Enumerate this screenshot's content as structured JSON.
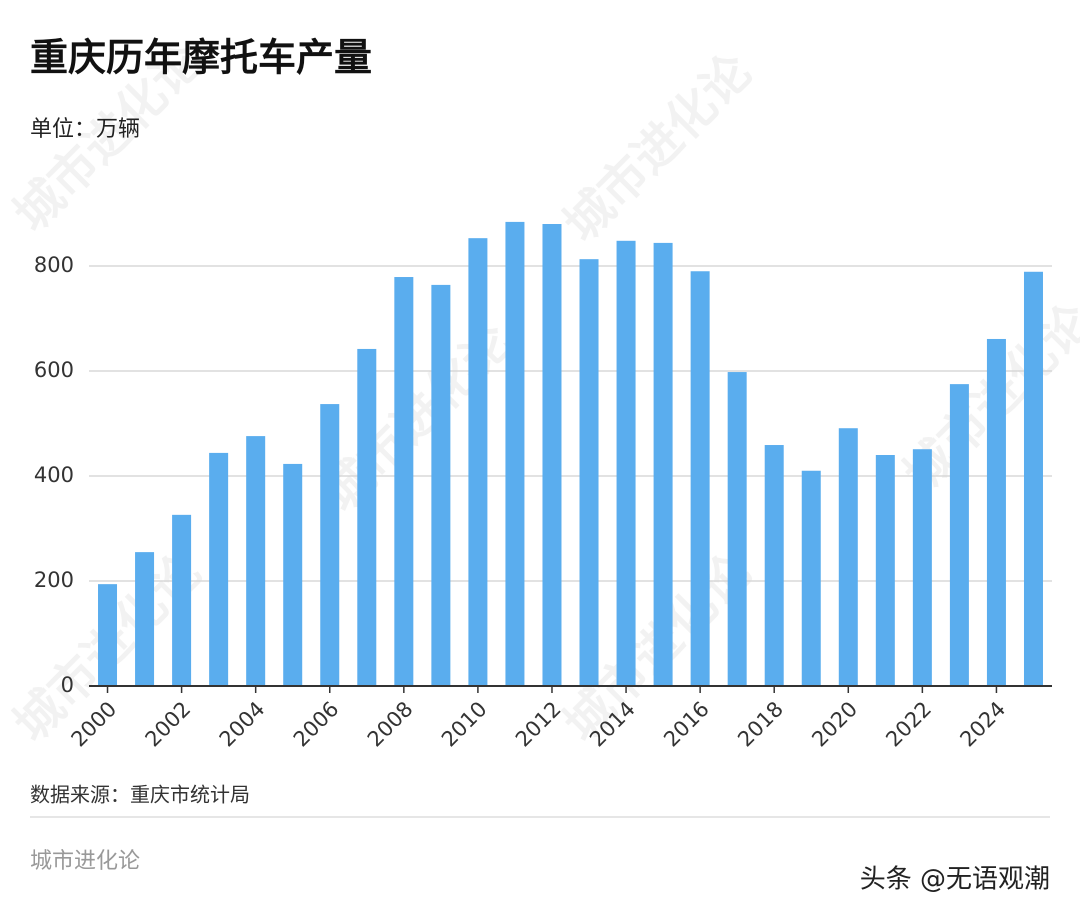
{
  "chart_data": {
    "type": "bar",
    "title": "重庆历年摩托车产量",
    "subtitle": "单位：万辆",
    "source": "数据来源：重庆市统计局",
    "brand": "城市进化论",
    "watermark": "头条 @无语观潮",
    "categories": [
      "2000",
      null,
      "2002",
      null,
      "2004",
      null,
      "2006",
      null,
      "2008",
      null,
      "2010",
      null,
      "2012",
      null,
      "2014",
      null,
      "2016",
      null,
      "2018",
      null,
      "2020",
      null,
      "2022",
      null,
      "2024",
      null
    ],
    "values": [
      194,
      255,
      326,
      444,
      476,
      423,
      537,
      642,
      779,
      764,
      853,
      884,
      880,
      813,
      848,
      844,
      790,
      598,
      459,
      410,
      491,
      440,
      451,
      575,
      661,
      789
    ],
    "color": "#5aadee",
    "ylim": [
      0,
      900
    ],
    "yticks": [
      0,
      200,
      400,
      600,
      800
    ],
    "grid": true
  }
}
